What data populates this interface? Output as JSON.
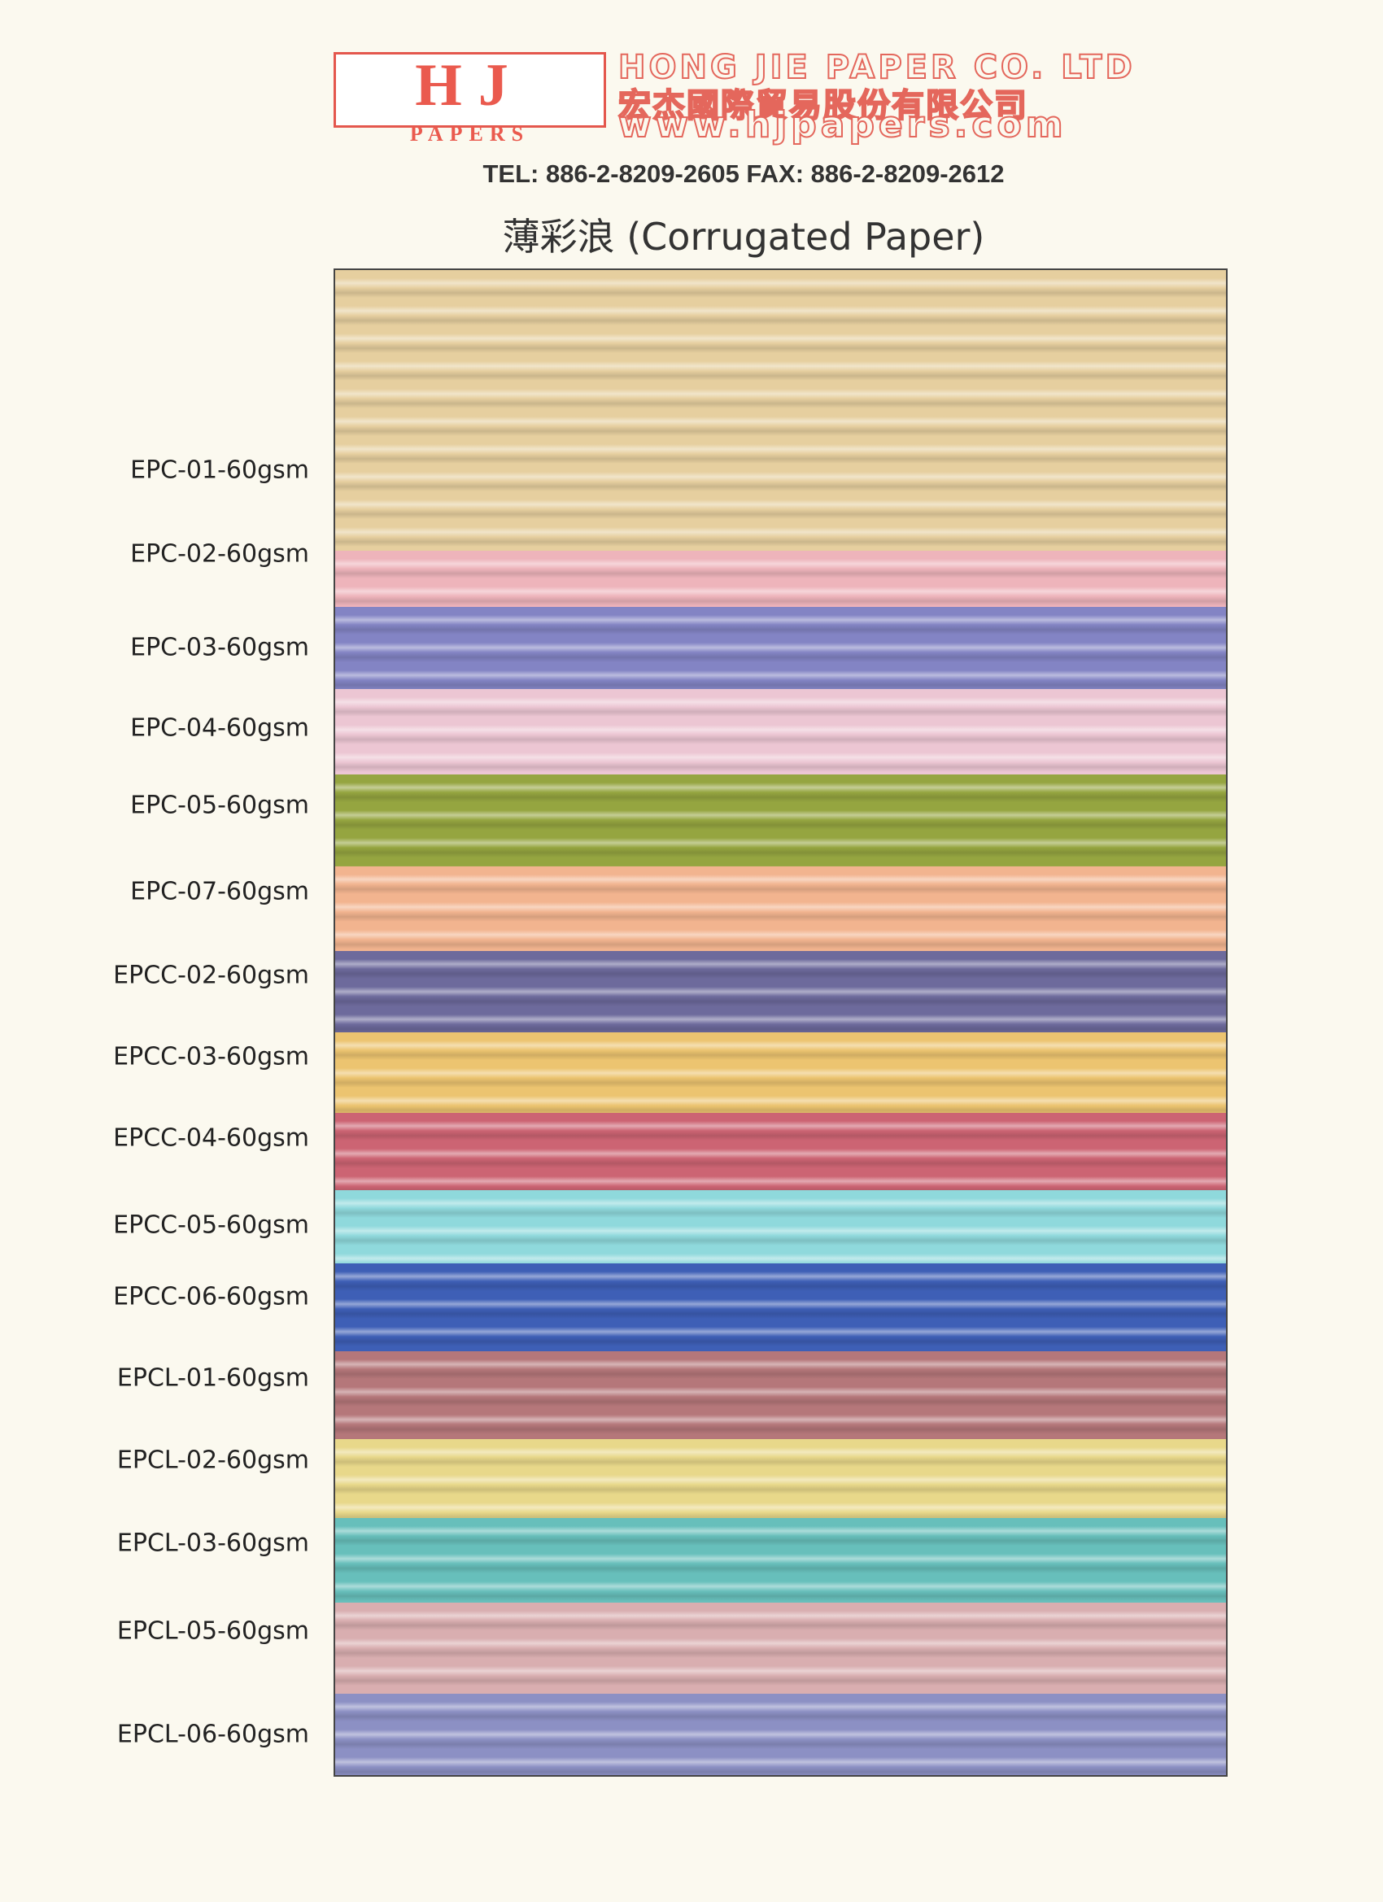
{
  "header": {
    "logo": "HJ",
    "logo_sub": "PAPERS",
    "company": "HONG JIE PAPER CO. LTD",
    "company_zh": "宏杰國際貿易股份有限公司",
    "website": "www.hjpapers.com",
    "contact": "TEL: 886-2-8209-2605 FAX: 886-2-8209-2612",
    "title": "薄彩浪 (Corrugated Paper)"
  },
  "samples": [
    {
      "label": "EPC-01-60gsm",
      "color": "#e6cf9f"
    },
    {
      "label": "EPC-02-60gsm",
      "color": "#eeb4bb"
    },
    {
      "label": "EPC-03-60gsm",
      "color": "#8384c4"
    },
    {
      "label": "EPC-04-60gsm",
      "color": "#ecc6d3"
    },
    {
      "label": "EPC-05-60gsm",
      "color": "#95a540"
    },
    {
      "label": "EPC-07-60gsm",
      "color": "#f2b48f"
    },
    {
      "label": "EPCC-02-60gsm",
      "color": "#6d6a9c"
    },
    {
      "label": "EPCC-03-60gsm",
      "color": "#ecc470"
    },
    {
      "label": "EPCC-04-60gsm",
      "color": "#cc6473"
    },
    {
      "label": "EPCC-05-60gsm",
      "color": "#8fd9dc"
    },
    {
      "label": "EPCC-06-60gsm",
      "color": "#3e5fb6"
    },
    {
      "label": "EPCL-01-60gsm",
      "color": "#b5777a"
    },
    {
      "label": "EPCL-02-60gsm",
      "color": "#e8d88a"
    },
    {
      "label": "EPCL-03-60gsm",
      "color": "#67bfbb"
    },
    {
      "label": "EPCL-05-60gsm",
      "color": "#d9aeb0"
    },
    {
      "label": "EPCL-06-60gsm",
      "color": "#8c90c4"
    }
  ]
}
